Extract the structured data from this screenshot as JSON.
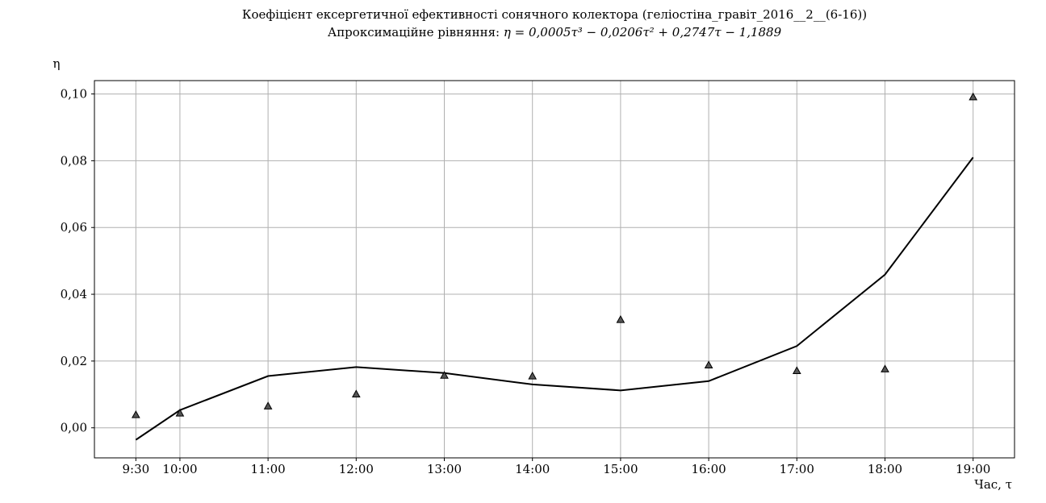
{
  "chart_data": {
    "type": "line",
    "title": "Коефіцієнт ексергетичної ефективності сонячного колектора (геліостіна_гравіт_2016__2__(6-16))",
    "subtitle_prefix": "Апроксимаційне рівняння: ",
    "subtitle_equation": "η = 0,0005τ³ − 0,0206τ² + 0,2747τ − 1,1889",
    "ylabel": "η",
    "xlabel": "Час, τ",
    "x": [
      9.5,
      10,
      11,
      12,
      13,
      14,
      15,
      16,
      17,
      18,
      19
    ],
    "x_tick_labels": [
      "9:30",
      "10:00",
      "11:00",
      "12:00",
      "13:00",
      "14:00",
      "15:00",
      "16:00",
      "17:00",
      "18:00",
      "19:00"
    ],
    "xlim": [
      9.03,
      19.47
    ],
    "ylim": [
      -0.009,
      0.104
    ],
    "y_ticks": [
      0.0,
      0.02,
      0.04,
      0.06,
      0.08,
      0.1
    ],
    "y_tick_labels": [
      "0,00",
      "0,02",
      "0,04",
      "0,06",
      "0,08",
      "0,10"
    ],
    "grid": true,
    "series": [
      {
        "kind": "line",
        "color": "#000000",
        "values": [
          -0.0036,
          0.0053,
          0.0155,
          0.0182,
          0.0164,
          0.013,
          0.0112,
          0.014,
          0.0245,
          0.0459,
          0.081
        ]
      },
      {
        "kind": "scatter",
        "marker": "triangle",
        "color": "#555555",
        "values": [
          0.0039,
          0.0044,
          0.0065,
          0.0101,
          0.0157,
          0.0155,
          0.0324,
          0.0188,
          0.0171,
          0.0176,
          0.0991
        ]
      }
    ]
  }
}
